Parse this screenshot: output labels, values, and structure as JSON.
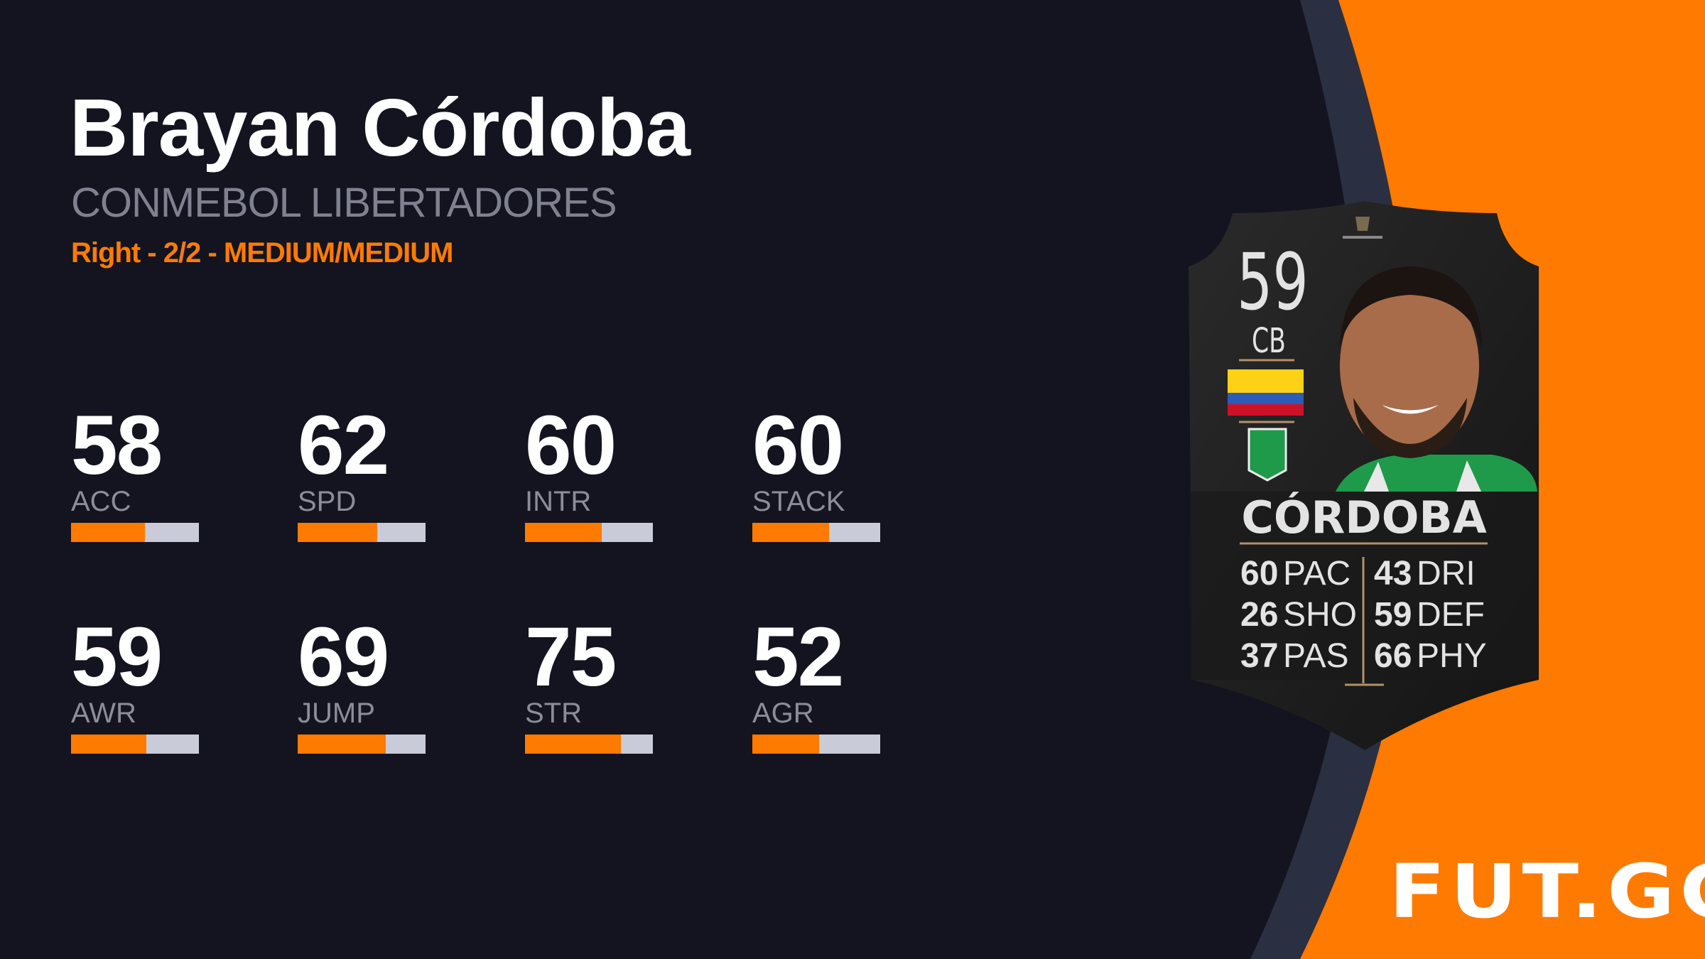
{
  "player": {
    "name": "Brayan Córdoba",
    "card_type": "CONMEBOL LIBERTADORES",
    "details": "Right - 2/2 - MEDIUM/MEDIUM"
  },
  "stats": [
    {
      "value": "58",
      "label": "ACC",
      "percent": 58
    },
    {
      "value": "62",
      "label": "SPD",
      "percent": 62
    },
    {
      "value": "60",
      "label": "INTR",
      "percent": 60
    },
    {
      "value": "60",
      "label": "STACK",
      "percent": 60
    },
    {
      "value": "59",
      "label": "AWR",
      "percent": 59
    },
    {
      "value": "69",
      "label": "JUMP",
      "percent": 69
    },
    {
      "value": "75",
      "label": "STR",
      "percent": 75
    },
    {
      "value": "52",
      "label": "AGR",
      "percent": 52
    }
  ],
  "card": {
    "rating": "59",
    "position": "CB",
    "name": "CÓRDOBA",
    "competition_logo": "LIBERTADORES",
    "nation_flag": "colombia-flag",
    "club_badge": "atletico-nacional-badge",
    "attributes": [
      {
        "value": "60",
        "label": "PAC"
      },
      {
        "value": "26",
        "label": "SHO"
      },
      {
        "value": "37",
        "label": "PAS"
      },
      {
        "value": "43",
        "label": "DRI"
      },
      {
        "value": "59",
        "label": "DEF"
      },
      {
        "value": "66",
        "label": "PHY"
      }
    ]
  },
  "brand": {
    "logo": "FUT.GG"
  },
  "colors": {
    "background": "#13141f",
    "accent": "#ff7a00",
    "band": "#2b2f42",
    "bar_track": "#c9ccd8",
    "label": "#8b8d9b"
  }
}
